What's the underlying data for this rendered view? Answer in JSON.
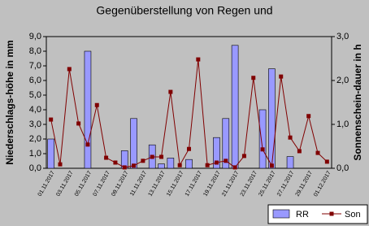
{
  "chart_data": {
    "type": "bar",
    "title": "Gegenüberstellung von Regen und",
    "ylabel": "Niederschlags-höhe in mm",
    "y2label": "Sonnenschein-dauer in h",
    "categories": [
      "01.11.2017",
      null,
      "03.11.2017",
      null,
      "05.11.2017",
      null,
      "07.11.2017",
      null,
      "09.11.2017",
      null,
      "11.11.2017",
      null,
      "13.11.2017",
      null,
      "15.11.2017",
      null,
      "17.11.2017",
      null,
      "19.11.2017",
      null,
      "21.11.2017",
      null,
      "23.11.2017",
      null,
      "25.11.2017",
      null,
      "27.11.2017",
      null,
      "29.11.2017",
      null,
      "01.12.2017"
    ],
    "series": [
      {
        "name": "RR",
        "type": "bar",
        "color": "#9999ff",
        "values": [
          2.0,
          0,
          0,
          0,
          8.0,
          0,
          0,
          0,
          1.2,
          3.4,
          0,
          1.6,
          0.3,
          0.7,
          0,
          0.6,
          0,
          0,
          2.1,
          3.4,
          8.4,
          0,
          0,
          4.0,
          6.8,
          0,
          0.8,
          0,
          0,
          0,
          0
        ]
      },
      {
        "name": "Son",
        "type": "line",
        "axis": "y2",
        "color": "#800000",
        "values": [
          1.11,
          0.09,
          2.26,
          1.02,
          0.54,
          1.44,
          0.24,
          0.13,
          0.02,
          0.06,
          0.17,
          0.26,
          0.26,
          1.74,
          0.07,
          0.44,
          2.48,
          0.07,
          0.13,
          0.17,
          0.02,
          0.28,
          2.06,
          0.43,
          0.06,
          2.09,
          0.7,
          0.39,
          1.19,
          0.35,
          0.15
        ]
      }
    ],
    "ylim": [
      0,
      9
    ],
    "yticks": [
      {
        "value": 0,
        "label": "0,0"
      },
      {
        "value": 1,
        "label": "1,0"
      },
      {
        "value": 2,
        "label": "2,0"
      },
      {
        "value": 3,
        "label": "3,0"
      },
      {
        "value": 4,
        "label": "4,0"
      },
      {
        "value": 5,
        "label": "5,0"
      },
      {
        "value": 6,
        "label": "6,0"
      },
      {
        "value": 7,
        "label": "7,0"
      },
      {
        "value": 8,
        "label": "8,0"
      },
      {
        "value": 9,
        "label": "9,0"
      }
    ],
    "y2lim": [
      0,
      3
    ],
    "y2ticks": [
      {
        "value": 0,
        "label": "0,0"
      },
      {
        "value": 1,
        "label": "1,0"
      },
      {
        "value": 2,
        "label": "2,0"
      },
      {
        "value": 3,
        "label": "3,0"
      }
    ],
    "legend": "bottom-right"
  }
}
